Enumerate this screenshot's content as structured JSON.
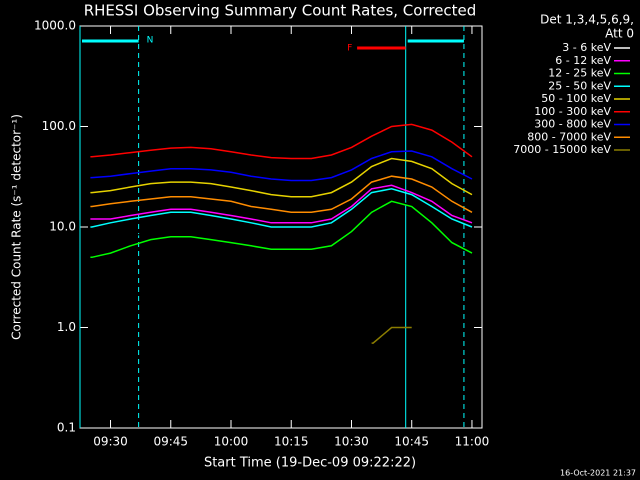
{
  "chart_data": {
    "type": "line",
    "title": "RHESSI Observing Summary Count Rates, Corrected",
    "x_label": "Start Time (19-Dec-09 09:22:22)",
    "y_label": "Corrected Count Rate (s⁻¹ detector⁻¹)",
    "legend_header": [
      "Det 1,3,4,5,6,9,",
      "Att 0"
    ],
    "footer": "16-Oct-2021 21:37",
    "log_scale_y": true,
    "ylim": [
      0.1,
      1000
    ],
    "yticks": [
      {
        "value": 1000,
        "label": "1000.0"
      },
      {
        "value": 100,
        "label": "100.0"
      },
      {
        "value": 10,
        "label": "10.0"
      },
      {
        "value": 1,
        "label": "1.0"
      },
      {
        "value": 0.1,
        "label": "0.1"
      }
    ],
    "xlim": [
      22.4,
      122.5
    ],
    "xticks": [
      {
        "value": 30,
        "label": "09:30"
      },
      {
        "value": 45,
        "label": "09:45"
      },
      {
        "value": 60,
        "label": "10:00"
      },
      {
        "value": 75,
        "label": "10:15"
      },
      {
        "value": 90,
        "label": "10:30"
      },
      {
        "value": 105,
        "label": "10:45"
      },
      {
        "value": 120,
        "label": "11:00"
      }
    ],
    "x": [
      25,
      30,
      35,
      40,
      45,
      50,
      55,
      60,
      65,
      70,
      75,
      80,
      85,
      90,
      95,
      100,
      105,
      110,
      115,
      120
    ],
    "series": [
      {
        "name": "3 - 6 keV",
        "color": "#ffffff",
        "line_color": "#000000",
        "values": [
          6.5,
          7,
          8,
          9,
          9.5,
          9.5,
          9,
          8.5,
          8,
          7.5,
          7.5,
          7.5,
          8,
          10,
          16,
          20,
          16,
          11,
          8,
          7
        ]
      },
      {
        "name": "6 - 12 keV",
        "color": "#ff00ff",
        "values": [
          12,
          12,
          13,
          14,
          15,
          15,
          14,
          13,
          12,
          11,
          11,
          11,
          12,
          16,
          24,
          26,
          22,
          18,
          13,
          11
        ]
      },
      {
        "name": "12 - 25 keV",
        "color": "#00ff00",
        "values": [
          5,
          5.5,
          6.5,
          7.5,
          8,
          8,
          7.5,
          7,
          6.5,
          6,
          6,
          6,
          6.5,
          9,
          14,
          18,
          16,
          11,
          7,
          5.5
        ]
      },
      {
        "name": "25 - 50 keV",
        "color": "#00ffff",
        "values": [
          10,
          11,
          12,
          13,
          14,
          14,
          13,
          12,
          11,
          10,
          10,
          10,
          11,
          15,
          22,
          24,
          21,
          16,
          12,
          10
        ]
      },
      {
        "name": "50 - 100 keV",
        "color": "#e6d200",
        "values": [
          22,
          23,
          25,
          27,
          28,
          28,
          27,
          25,
          23,
          21,
          20,
          20,
          22,
          28,
          40,
          48,
          45,
          38,
          27,
          21
        ]
      },
      {
        "name": "100 - 300 keV",
        "color": "#ff0000",
        "values": [
          50,
          52,
          55,
          58,
          61,
          62,
          60,
          56,
          52,
          49,
          48,
          48,
          52,
          62,
          80,
          100,
          105,
          92,
          70,
          50
        ]
      },
      {
        "name": "300 - 800 keV",
        "color": "#0000ff",
        "values": [
          31,
          32,
          34,
          36,
          38,
          38,
          37,
          35,
          32,
          30,
          29,
          29,
          31,
          37,
          48,
          56,
          57,
          50,
          38,
          30
        ]
      },
      {
        "name": "800 - 7000 keV",
        "color": "#ff8c00",
        "values": [
          16,
          17,
          18,
          19,
          20,
          20,
          19,
          18,
          16,
          15,
          14,
          14,
          15,
          19,
          28,
          32,
          30,
          25,
          18,
          14
        ]
      },
      {
        "name": "7000 - 15000 keV",
        "color": "#8b7d00",
        "values": [
          null,
          null,
          null,
          null,
          null,
          null,
          null,
          null,
          null,
          null,
          null,
          null,
          null,
          null,
          0.7,
          1.0,
          1.0,
          null,
          null,
          null
        ]
      }
    ],
    "night_label": "N",
    "night_color": "#00ffff",
    "night_intervals": [
      [
        22.4,
        37
      ],
      [
        103.5,
        118
      ]
    ],
    "flare_label": "F",
    "flare_color": "#ff0000",
    "flare_interval": [
      91.4,
      103.5
    ]
  }
}
